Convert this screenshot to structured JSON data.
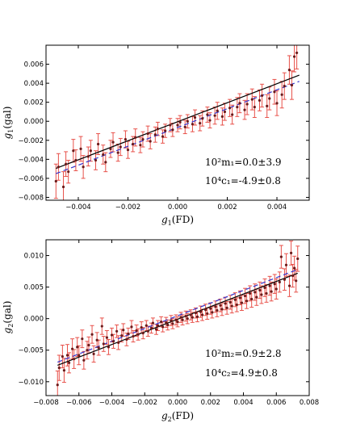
{
  "chart_data": [
    {
      "type": "scatter",
      "xlabel": "g1(FD)",
      "ylabel": "g1(gal)",
      "xlim": [
        -0.0053,
        0.0053
      ],
      "ylim": [
        -0.0083,
        0.008
      ],
      "xticks": [
        -0.004,
        -0.002,
        0.0,
        0.002,
        0.004
      ],
      "yticks": [
        -0.008,
        -0.006,
        -0.004,
        -0.002,
        0.0,
        0.002,
        0.004,
        0.006
      ],
      "xtick_labels": [
        "−0.004",
        "−0.002",
        "0.000",
        "0.002",
        "0.004"
      ],
      "ytick_labels": [
        "−0.008",
        "−0.006",
        "−0.004",
        "−0.002",
        "0.000",
        "0.002",
        "0.004",
        "0.006"
      ],
      "annotations": [
        "10²m₁=0.0±3.9",
        "10⁴c₁=-4.9±0.8"
      ],
      "lines": [
        {
          "style": "solid",
          "color": "#000000",
          "x": [
            -0.0049,
            0.0049
          ],
          "y": [
            -0.00495,
            0.00485
          ]
        },
        {
          "style": "dashed",
          "color": "#3333cc",
          "x": [
            -0.0049,
            0.0049
          ],
          "y": [
            -0.0055,
            0.0042
          ]
        }
      ],
      "points": [
        [
          -0.0049,
          -0.0063,
          0.0018
        ],
        [
          -0.0048,
          -0.0048,
          0.0014
        ],
        [
          -0.0046,
          -0.0069,
          0.0016
        ],
        [
          -0.0045,
          -0.0045,
          0.0013
        ],
        [
          -0.0044,
          -0.0053,
          0.0012
        ],
        [
          -0.0042,
          -0.0031,
          0.0012
        ],
        [
          -0.0041,
          -0.0041,
          0.0011
        ],
        [
          -0.0039,
          -0.0029,
          0.0013
        ],
        [
          -0.0038,
          -0.0048,
          0.0012
        ],
        [
          -0.0036,
          -0.0037,
          0.001
        ],
        [
          -0.0035,
          -0.0031,
          0.0011
        ],
        [
          -0.0033,
          -0.0041,
          0.001
        ],
        [
          -0.0032,
          -0.0024,
          0.0011
        ],
        [
          -0.003,
          -0.0035,
          0.001
        ],
        [
          -0.0029,
          -0.0043,
          0.001
        ],
        [
          -0.0027,
          -0.0029,
          0.0009
        ],
        [
          -0.0026,
          -0.0022,
          0.001
        ],
        [
          -0.0024,
          -0.0033,
          0.0009
        ],
        [
          -0.0023,
          -0.0027,
          0.0009
        ],
        [
          -0.0021,
          -0.0019,
          0.0009
        ],
        [
          -0.002,
          -0.003,
          0.0009
        ],
        [
          -0.0018,
          -0.0024,
          0.0008
        ],
        [
          -0.0017,
          -0.0017,
          0.0009
        ],
        [
          -0.0015,
          -0.0025,
          0.0008
        ],
        [
          -0.0014,
          -0.0019,
          0.0008
        ],
        [
          -0.0012,
          -0.0013,
          0.0008
        ],
        [
          -0.0011,
          -0.0021,
          0.0008
        ],
        [
          -0.0009,
          -0.0014,
          0.0008
        ],
        [
          -0.0008,
          -0.0008,
          0.0007
        ],
        [
          -0.0006,
          -0.0016,
          0.0007
        ],
        [
          -0.0005,
          -0.001,
          0.0007
        ],
        [
          -0.0003,
          -0.0004,
          0.0007
        ],
        [
          -0.0002,
          -0.0009,
          0.0007
        ],
        [
          0.0,
          -0.0004,
          0.0007
        ],
        [
          0.0001,
          -0.0001,
          0.0007
        ],
        [
          0.0003,
          -0.0006,
          0.0007
        ],
        [
          0.0004,
          0.0,
          0.0007
        ],
        [
          0.0006,
          -0.0003,
          0.0008
        ],
        [
          0.0007,
          0.0004,
          0.0008
        ],
        [
          0.0009,
          -0.0002,
          0.0008
        ],
        [
          0.001,
          0.0003,
          0.0008
        ],
        [
          0.0012,
          0.0007,
          0.0008
        ],
        [
          0.0013,
          0.0001,
          0.0008
        ],
        [
          0.0015,
          0.0006,
          0.0009
        ],
        [
          0.0016,
          0.0011,
          0.0009
        ],
        [
          0.0018,
          0.0005,
          0.0009
        ],
        [
          0.0019,
          0.001,
          0.0009
        ],
        [
          0.0021,
          0.0014,
          0.0009
        ],
        [
          0.0022,
          0.0007,
          0.001
        ],
        [
          0.0024,
          0.0015,
          0.001
        ],
        [
          0.0025,
          0.0019,
          0.001
        ],
        [
          0.0027,
          0.0012,
          0.001
        ],
        [
          0.0028,
          0.0018,
          0.0011
        ],
        [
          0.003,
          0.0023,
          0.0011
        ],
        [
          0.0031,
          0.0015,
          0.0011
        ],
        [
          0.0033,
          0.0022,
          0.0011
        ],
        [
          0.0034,
          0.0027,
          0.0012
        ],
        [
          0.0036,
          0.0016,
          0.0012
        ],
        [
          0.0037,
          0.0024,
          0.0012
        ],
        [
          0.0039,
          0.0031,
          0.0013
        ],
        [
          0.004,
          0.0019,
          0.0013
        ],
        [
          0.0042,
          0.0028,
          0.0014
        ],
        [
          0.0043,
          0.0037,
          0.0014
        ],
        [
          0.0045,
          0.0054,
          0.0015
        ],
        [
          0.0046,
          0.0038,
          0.0015
        ],
        [
          0.0047,
          0.0068,
          0.0016
        ],
        [
          0.0048,
          0.0072,
          0.0017
        ]
      ]
    },
    {
      "type": "scatter",
      "xlabel": "g2(FD)",
      "ylabel": "g2(gal)",
      "xlim": [
        -0.008,
        0.008
      ],
      "ylim": [
        -0.0122,
        0.0125
      ],
      "xticks": [
        -0.008,
        -0.006,
        -0.004,
        -0.002,
        0.0,
        0.002,
        0.004,
        0.006,
        0.008
      ],
      "yticks": [
        -0.01,
        -0.005,
        0.0,
        0.005,
        0.01
      ],
      "xtick_labels": [
        "−0.008",
        "−0.006",
        "−0.004",
        "−0.002",
        "0.000",
        "0.002",
        "0.004",
        "0.006",
        "0.008"
      ],
      "ytick_labels": [
        "−0.010",
        "−0.005",
        "0.000",
        "0.005",
        "0.010"
      ],
      "annotations": [
        "10²m₂=0.9±2.8",
        "10⁴c₂=4.9±0.8"
      ],
      "lines": [
        {
          "style": "solid",
          "color": "#000000",
          "x": [
            -0.0073,
            0.0073
          ],
          "y": [
            -0.0074,
            0.0072
          ]
        },
        {
          "style": "dashed",
          "color": "#3333cc",
          "x": [
            -0.0073,
            0.0073
          ],
          "y": [
            -0.0069,
            0.0078
          ]
        }
      ],
      "points": [
        [
          -0.0073,
          -0.0105,
          0.0022
        ],
        [
          -0.0072,
          -0.0078,
          0.002
        ],
        [
          -0.007,
          -0.006,
          0.0018
        ],
        [
          -0.0069,
          -0.0082,
          0.0019
        ],
        [
          -0.0067,
          -0.0058,
          0.0017
        ],
        [
          -0.0066,
          -0.007,
          0.0016
        ],
        [
          -0.0064,
          -0.0048,
          0.0016
        ],
        [
          -0.0063,
          -0.0064,
          0.0015
        ],
        [
          -0.0061,
          -0.0045,
          0.0015
        ],
        [
          -0.006,
          -0.0058,
          0.0015
        ],
        [
          -0.0058,
          -0.0032,
          0.0014
        ],
        [
          -0.0057,
          -0.0066,
          0.0014
        ],
        [
          -0.0055,
          -0.005,
          0.0014
        ],
        [
          -0.0054,
          -0.0042,
          0.0013
        ],
        [
          -0.0052,
          -0.0025,
          0.0014
        ],
        [
          -0.0051,
          -0.0056,
          0.0013
        ],
        [
          -0.0049,
          -0.0034,
          0.0012
        ],
        [
          -0.0048,
          -0.0046,
          0.0012
        ],
        [
          -0.0046,
          -0.0012,
          0.0013
        ],
        [
          -0.0045,
          -0.004,
          0.0012
        ],
        [
          -0.0043,
          -0.003,
          0.0011
        ],
        [
          -0.0042,
          -0.0045,
          0.0012
        ],
        [
          -0.004,
          -0.0026,
          0.0011
        ],
        [
          -0.0039,
          -0.0036,
          0.0011
        ],
        [
          -0.0037,
          -0.002,
          0.001
        ],
        [
          -0.0036,
          -0.0038,
          0.0011
        ],
        [
          -0.0034,
          -0.0027,
          0.001
        ],
        [
          -0.0033,
          -0.0018,
          0.001
        ],
        [
          -0.0031,
          -0.0033,
          0.001
        ],
        [
          -0.003,
          -0.0024,
          0.0009
        ],
        [
          -0.0028,
          -0.0013,
          0.001
        ],
        [
          -0.0027,
          -0.0028,
          0.0009
        ],
        [
          -0.0025,
          -0.0019,
          0.0009
        ],
        [
          -0.0024,
          -0.0025,
          0.0009
        ],
        [
          -0.0022,
          -0.0014,
          0.0009
        ],
        [
          -0.0021,
          -0.0023,
          0.0009
        ],
        [
          -0.0019,
          -0.0011,
          0.0008
        ],
        [
          -0.0018,
          -0.002,
          0.0008
        ],
        [
          -0.0016,
          -0.0015,
          0.0008
        ],
        [
          -0.0015,
          -0.0007,
          0.0008
        ],
        [
          -0.0013,
          -0.0017,
          0.0008
        ],
        [
          -0.0012,
          -0.0011,
          0.0008
        ],
        [
          -0.001,
          -0.0005,
          0.0008
        ],
        [
          -0.0009,
          -0.0013,
          0.0008
        ],
        [
          -0.0007,
          -0.0006,
          0.0008
        ],
        [
          -0.0006,
          -0.001,
          0.0008
        ],
        [
          -0.0004,
          -0.0003,
          0.0008
        ],
        [
          -0.0003,
          -0.0008,
          0.0008
        ],
        [
          -0.0001,
          -0.0002,
          0.0008
        ],
        [
          0.0,
          -0.0005,
          0.0008
        ],
        [
          0.0002,
          0.0002,
          0.0008
        ],
        [
          0.0003,
          -0.0002,
          0.0008
        ],
        [
          0.0005,
          0.0004,
          0.0008
        ],
        [
          0.0006,
          0.0,
          0.0008
        ],
        [
          0.0008,
          0.0006,
          0.0008
        ],
        [
          0.0009,
          0.0002,
          0.0008
        ],
        [
          0.0011,
          0.0009,
          0.0008
        ],
        [
          0.0012,
          0.0003,
          0.0008
        ],
        [
          0.0014,
          0.0011,
          0.0009
        ],
        [
          0.0015,
          0.0006,
          0.0009
        ],
        [
          0.0017,
          0.0014,
          0.0009
        ],
        [
          0.0018,
          0.0008,
          0.0009
        ],
        [
          0.002,
          0.0016,
          0.0009
        ],
        [
          0.0021,
          0.001,
          0.0009
        ],
        [
          0.0023,
          0.0019,
          0.0009
        ],
        [
          0.0024,
          0.0013,
          0.001
        ],
        [
          0.0026,
          0.0021,
          0.001
        ],
        [
          0.0027,
          0.0015,
          0.001
        ],
        [
          0.0029,
          0.0024,
          0.001
        ],
        [
          0.003,
          0.0017,
          0.001
        ],
        [
          0.0032,
          0.0026,
          0.0011
        ],
        [
          0.0033,
          0.002,
          0.0011
        ],
        [
          0.0035,
          0.003,
          0.0011
        ],
        [
          0.0036,
          0.0022,
          0.0011
        ],
        [
          0.0038,
          0.0033,
          0.0011
        ],
        [
          0.0039,
          0.0025,
          0.0012
        ],
        [
          0.0041,
          0.0036,
          0.0012
        ],
        [
          0.0042,
          0.0028,
          0.0012
        ],
        [
          0.0044,
          0.004,
          0.0012
        ],
        [
          0.0045,
          0.0031,
          0.0013
        ],
        [
          0.0047,
          0.0042,
          0.0013
        ],
        [
          0.0048,
          0.0034,
          0.0013
        ],
        [
          0.005,
          0.0045,
          0.0013
        ],
        [
          0.0051,
          0.0038,
          0.0014
        ],
        [
          0.0053,
          0.0049,
          0.0014
        ],
        [
          0.0054,
          0.004,
          0.0014
        ],
        [
          0.0056,
          0.0052,
          0.0015
        ],
        [
          0.0057,
          0.0043,
          0.0015
        ],
        [
          0.0059,
          0.0055,
          0.0015
        ],
        [
          0.006,
          0.0047,
          0.0016
        ],
        [
          0.0062,
          0.0058,
          0.0016
        ],
        [
          0.0063,
          0.0098,
          0.0018
        ],
        [
          0.0065,
          0.0062,
          0.0017
        ],
        [
          0.0066,
          0.0085,
          0.0018
        ],
        [
          0.0068,
          0.0052,
          0.0017
        ],
        [
          0.0069,
          0.0104,
          0.0019
        ],
        [
          0.007,
          0.0068,
          0.0018
        ],
        [
          0.0071,
          0.008,
          0.0019
        ],
        [
          0.0072,
          0.006,
          0.0018
        ],
        [
          0.0073,
          0.0095,
          0.002
        ]
      ]
    }
  ]
}
